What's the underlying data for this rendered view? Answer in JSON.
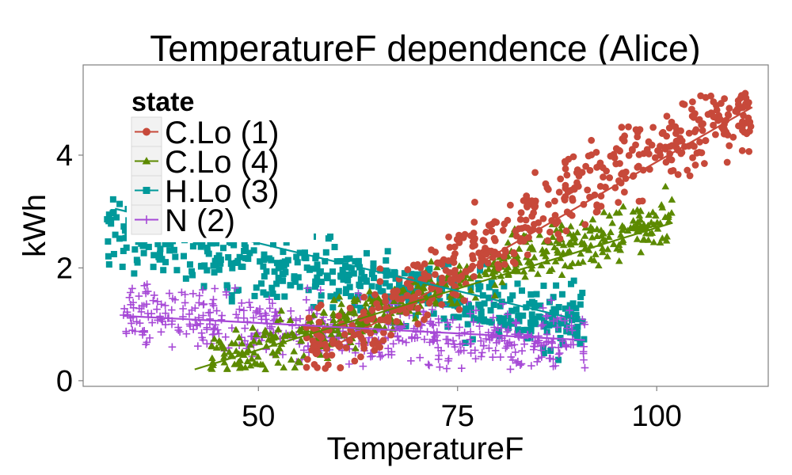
{
  "chart_data": {
    "type": "scatter",
    "title": "TemperatureF dependence (Alice)",
    "xlabel": "TemperatureF",
    "ylabel": "kWh",
    "xlim": [
      28,
      114
    ],
    "ylim": [
      -0.1,
      5.6
    ],
    "x_ticks": [
      {
        "value": 50,
        "label": "50"
      },
      {
        "value": 75,
        "label": "75"
      },
      {
        "value": 100,
        "label": "100"
      }
    ],
    "y_ticks": [
      {
        "value": 0,
        "label": "0"
      },
      {
        "value": 2,
        "label": "2"
      },
      {
        "value": 4,
        "label": "4"
      }
    ],
    "grid": false,
    "legend": {
      "title": "state",
      "placement": "top-left"
    },
    "series": [
      {
        "name": "C.Lo (1)",
        "color": "#C7493A",
        "marker": "circle",
        "x_range": [
          56,
          112
        ],
        "cloud": [
          [
            58,
            0.6
          ],
          [
            70,
            1.6
          ],
          [
            80,
            2.6
          ],
          [
            90,
            3.4
          ],
          [
            100,
            4.1
          ],
          [
            110,
            4.7
          ]
        ],
        "spread": 0.35,
        "fit": [
          [
            60,
            0.65
          ],
          [
            112,
            4.85
          ]
        ]
      },
      {
        "name": "C.Lo (4)",
        "color": "#5C8A00",
        "marker": "triangle",
        "x_range": [
          44,
          102
        ],
        "cloud": [
          [
            46,
            0.45
          ],
          [
            55,
            0.7
          ],
          [
            65,
            1.2
          ],
          [
            75,
            1.8
          ],
          [
            85,
            2.3
          ],
          [
            95,
            2.6
          ],
          [
            102,
            2.9
          ]
        ],
        "spread": 0.22,
        "fit": [
          [
            42,
            0.2
          ],
          [
            102,
            2.8
          ]
        ]
      },
      {
        "name": "H.Lo (3)",
        "color": "#00999A",
        "marker": "square",
        "x_range": [
          31,
          91
        ],
        "cloud": [
          [
            32,
            2.7
          ],
          [
            40,
            2.3
          ],
          [
            50,
            2.0
          ],
          [
            57,
            1.9
          ],
          [
            65,
            1.7
          ],
          [
            75,
            1.45
          ],
          [
            85,
            1.2
          ],
          [
            91,
            1.05
          ]
        ],
        "spread": 0.3,
        "fit": [
          [
            32,
            3.05
          ],
          [
            91,
            1.05
          ]
        ]
      },
      {
        "name": "N (2)",
        "color": "#A648D6",
        "marker": "plus",
        "x_range": [
          33,
          91
        ],
        "cloud": [
          [
            33,
            1.15
          ],
          [
            42,
            1.05
          ],
          [
            52,
            1.0
          ],
          [
            62,
            0.85
          ],
          [
            72,
            0.8
          ],
          [
            82,
            0.75
          ],
          [
            91,
            0.75
          ]
        ],
        "spread": 0.28,
        "fit": [
          [
            33,
            1.15
          ],
          [
            91,
            0.72
          ]
        ]
      }
    ]
  }
}
